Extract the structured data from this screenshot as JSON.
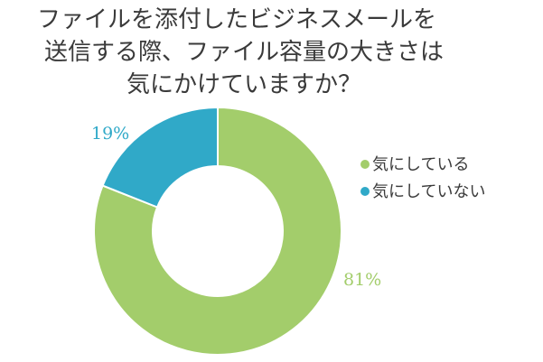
{
  "chart_data": {
    "type": "pie",
    "donut": true,
    "title_lines": [
      "ファイルを添付したビジネスメールを",
      "送信する際、ファイル容量の大きさは",
      "気にかけていますか？"
    ],
    "slices": [
      {
        "label": "気にしている",
        "value": 81,
        "value_label": "81%",
        "color": "#a3cd6b"
      },
      {
        "label": "気にしていない",
        "value": 19,
        "value_label": "19%",
        "color": "#30a9c8"
      }
    ],
    "legend_position": "right"
  }
}
